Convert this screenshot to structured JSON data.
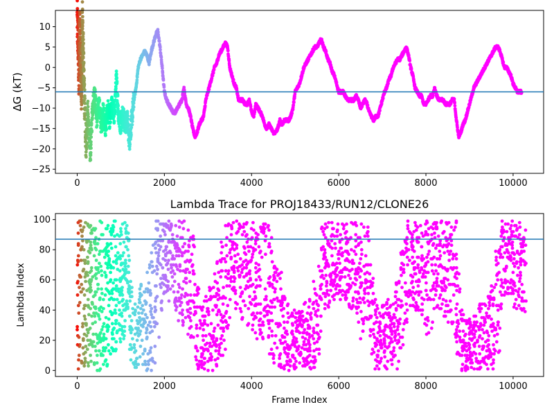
{
  "chart_data": [
    {
      "type": "scatter",
      "title": "",
      "xlabel": "",
      "ylabel": "ΔG (kT)",
      "xlim": [
        -500,
        10700
      ],
      "ylim": [
        -26,
        14
      ],
      "xticks": [
        0,
        2000,
        4000,
        6000,
        8000,
        10000
      ],
      "yticks": [
        -25,
        -20,
        -15,
        -10,
        -5,
        0,
        5,
        10
      ],
      "hline": -6,
      "hline_color": "#1f77b4",
      "colormap": "rainbow (red at early frames → violet at late frames)",
      "trace": [
        [
          0,
          12
        ],
        [
          20,
          6
        ],
        [
          40,
          -2
        ],
        [
          60,
          10
        ],
        [
          80,
          0
        ],
        [
          100,
          -8
        ],
        [
          120,
          12
        ],
        [
          140,
          3
        ],
        [
          160,
          -6
        ],
        [
          200,
          -18
        ],
        [
          250,
          -12
        ],
        [
          300,
          -22
        ],
        [
          350,
          -10
        ],
        [
          400,
          -6
        ],
        [
          450,
          -13
        ],
        [
          500,
          -9
        ],
        [
          550,
          -14
        ],
        [
          600,
          -11
        ],
        [
          650,
          -15
        ],
        [
          700,
          -10
        ],
        [
          750,
          -13
        ],
        [
          800,
          -9
        ],
        [
          850,
          -12
        ],
        [
          900,
          -3
        ],
        [
          950,
          -12
        ],
        [
          1000,
          -14
        ],
        [
          1050,
          -11
        ],
        [
          1100,
          -14
        ],
        [
          1150,
          -13
        ],
        [
          1200,
          -18
        ],
        [
          1250,
          -13
        ],
        [
          1300,
          -8
        ],
        [
          1350,
          -5
        ],
        [
          1400,
          0
        ],
        [
          1450,
          2
        ],
        [
          1500,
          3
        ],
        [
          1550,
          4
        ],
        [
          1600,
          3
        ],
        [
          1650,
          1
        ],
        [
          1700,
          4
        ],
        [
          1750,
          6
        ],
        [
          1800,
          8
        ],
        [
          1850,
          9
        ],
        [
          1900,
          5
        ],
        [
          1950,
          0
        ],
        [
          2000,
          -6
        ],
        [
          2050,
          -8
        ],
        [
          2100,
          -9
        ],
        [
          2150,
          -10
        ],
        [
          2200,
          -11
        ],
        [
          2250,
          -11
        ],
        [
          2300,
          -10
        ],
        [
          2350,
          -9
        ],
        [
          2400,
          -8
        ],
        [
          2450,
          -5
        ],
        [
          2500,
          -9
        ],
        [
          2550,
          -10
        ],
        [
          2600,
          -12
        ],
        [
          2650,
          -15
        ],
        [
          2700,
          -17
        ],
        [
          2750,
          -16
        ],
        [
          2800,
          -14
        ],
        [
          2850,
          -13
        ],
        [
          2900,
          -12
        ],
        [
          2950,
          -8
        ],
        [
          3000,
          -6
        ],
        [
          3050,
          -4
        ],
        [
          3100,
          -2
        ],
        [
          3150,
          0
        ],
        [
          3200,
          1
        ],
        [
          3250,
          3
        ],
        [
          3300,
          4
        ],
        [
          3350,
          5
        ],
        [
          3400,
          6
        ],
        [
          3450,
          5
        ],
        [
          3500,
          0
        ],
        [
          3550,
          -2
        ],
        [
          3600,
          -4
        ],
        [
          3650,
          -5
        ],
        [
          3700,
          -8
        ],
        [
          3750,
          -8
        ],
        [
          3800,
          -8
        ],
        [
          3850,
          -9
        ],
        [
          3900,
          -9
        ],
        [
          3950,
          -8
        ],
        [
          4000,
          -11
        ],
        [
          4050,
          -12
        ],
        [
          4100,
          -9
        ],
        [
          4150,
          -10
        ],
        [
          4200,
          -11
        ],
        [
          4250,
          -12
        ],
        [
          4300,
          -14
        ],
        [
          4350,
          -15
        ],
        [
          4400,
          -14
        ],
        [
          4450,
          -15
        ],
        [
          4500,
          -16
        ],
        [
          4550,
          -16
        ],
        [
          4600,
          -15
        ],
        [
          4650,
          -13
        ],
        [
          4700,
          -14
        ],
        [
          4750,
          -13
        ],
        [
          4800,
          -13
        ],
        [
          4850,
          -13
        ],
        [
          4900,
          -12
        ],
        [
          4950,
          -10
        ],
        [
          5000,
          -6
        ],
        [
          5050,
          -5
        ],
        [
          5100,
          -4
        ],
        [
          5150,
          -2
        ],
        [
          5200,
          0
        ],
        [
          5250,
          1
        ],
        [
          5300,
          2
        ],
        [
          5350,
          3
        ],
        [
          5400,
          4
        ],
        [
          5450,
          5
        ],
        [
          5500,
          5
        ],
        [
          5550,
          6
        ],
        [
          5600,
          7
        ],
        [
          5650,
          5
        ],
        [
          5700,
          4
        ],
        [
          5750,
          2
        ],
        [
          5800,
          1
        ],
        [
          5850,
          -1
        ],
        [
          5900,
          -2
        ],
        [
          5950,
          -4
        ],
        [
          6000,
          -6
        ],
        [
          6050,
          -6
        ],
        [
          6100,
          -6
        ],
        [
          6150,
          -7
        ],
        [
          6200,
          -8
        ],
        [
          6250,
          -8
        ],
        [
          6300,
          -8
        ],
        [
          6350,
          -8
        ],
        [
          6400,
          -7
        ],
        [
          6450,
          -8
        ],
        [
          6500,
          -10
        ],
        [
          6550,
          -9
        ],
        [
          6600,
          -8
        ],
        [
          6650,
          -9
        ],
        [
          6700,
          -11
        ],
        [
          6750,
          -12
        ],
        [
          6800,
          -13
        ],
        [
          6850,
          -12
        ],
        [
          6900,
          -12
        ],
        [
          6950,
          -10
        ],
        [
          7000,
          -8
        ],
        [
          7050,
          -6
        ],
        [
          7100,
          -5
        ],
        [
          7150,
          -3
        ],
        [
          7200,
          -2
        ],
        [
          7250,
          0
        ],
        [
          7300,
          1
        ],
        [
          7350,
          2
        ],
        [
          7400,
          2
        ],
        [
          7450,
          3
        ],
        [
          7500,
          4
        ],
        [
          7550,
          5
        ],
        [
          7600,
          3
        ],
        [
          7650,
          0
        ],
        [
          7700,
          -2
        ],
        [
          7750,
          -5
        ],
        [
          7800,
          -6
        ],
        [
          7850,
          -7
        ],
        [
          7900,
          -7
        ],
        [
          7950,
          -9
        ],
        [
          8000,
          -9
        ],
        [
          8050,
          -8
        ],
        [
          8100,
          -7
        ],
        [
          8150,
          -7
        ],
        [
          8200,
          -5
        ],
        [
          8250,
          -7
        ],
        [
          8300,
          -8
        ],
        [
          8350,
          -8
        ],
        [
          8400,
          -8
        ],
        [
          8450,
          -9
        ],
        [
          8500,
          -9
        ],
        [
          8550,
          -9
        ],
        [
          8600,
          -8
        ],
        [
          8650,
          -8
        ],
        [
          8700,
          -13
        ],
        [
          8750,
          -17
        ],
        [
          8800,
          -16
        ],
        [
          8850,
          -14
        ],
        [
          8900,
          -13
        ],
        [
          8950,
          -11
        ],
        [
          9000,
          -9
        ],
        [
          9050,
          -7
        ],
        [
          9100,
          -5
        ],
        [
          9150,
          -4
        ],
        [
          9200,
          -3
        ],
        [
          9250,
          -2
        ],
        [
          9300,
          -1
        ],
        [
          9350,
          0
        ],
        [
          9400,
          1
        ],
        [
          9450,
          2
        ],
        [
          9500,
          3
        ],
        [
          9550,
          4
        ],
        [
          9600,
          5
        ],
        [
          9650,
          5
        ],
        [
          9700,
          4
        ],
        [
          9750,
          2
        ],
        [
          9800,
          0
        ],
        [
          9850,
          0
        ],
        [
          9900,
          -1
        ],
        [
          9950,
          -2
        ],
        [
          10000,
          -4
        ],
        [
          10050,
          -5
        ],
        [
          10100,
          -6
        ],
        [
          10150,
          -6
        ],
        [
          10200,
          -6
        ]
      ]
    },
    {
      "type": "scatter",
      "title": "Lambda Trace for PROJ18433/RUN12/CLONE26",
      "xlabel": "Frame Index",
      "ylabel": "Lambda Index",
      "xlim": [
        -500,
        10700
      ],
      "ylim": [
        -4,
        104
      ],
      "xticks": [
        0,
        2000,
        4000,
        6000,
        8000,
        10000
      ],
      "yticks": [
        0,
        20,
        40,
        60,
        80,
        100
      ],
      "hline": 87,
      "hline_color": "#1f77b4",
      "colormap": "rainbow (red at early frames → violet at late frames)",
      "bands": [
        [
          0,
          0,
          99
        ],
        [
          100,
          0,
          99
        ],
        [
          200,
          0,
          99
        ],
        [
          300,
          0,
          99
        ],
        [
          400,
          0,
          99
        ],
        [
          500,
          0,
          99
        ],
        [
          600,
          0,
          99
        ],
        [
          700,
          10,
          99
        ],
        [
          800,
          10,
          99
        ],
        [
          900,
          15,
          99
        ],
        [
          1000,
          20,
          99
        ],
        [
          1100,
          40,
          99
        ],
        [
          1200,
          0,
          60
        ],
        [
          1300,
          0,
          45
        ],
        [
          1400,
          0,
          60
        ],
        [
          1500,
          0,
          55
        ],
        [
          1600,
          0,
          75
        ],
        [
          1700,
          0,
          90
        ],
        [
          1800,
          20,
          99
        ],
        [
          1900,
          40,
          99
        ],
        [
          2000,
          50,
          99
        ],
        [
          2100,
          45,
          99
        ],
        [
          2200,
          40,
          99
        ],
        [
          2300,
          30,
          99
        ],
        [
          2400,
          30,
          99
        ],
        [
          2500,
          20,
          99
        ],
        [
          2600,
          10,
          90
        ],
        [
          2700,
          0,
          60
        ],
        [
          2800,
          0,
          45
        ],
        [
          2900,
          0,
          50
        ],
        [
          3000,
          0,
          55
        ],
        [
          3100,
          0,
          65
        ],
        [
          3200,
          5,
          75
        ],
        [
          3300,
          10,
          85
        ],
        [
          3400,
          25,
          99
        ],
        [
          3500,
          40,
          99
        ],
        [
          3600,
          40,
          99
        ],
        [
          3700,
          30,
          99
        ],
        [
          3800,
          40,
          99
        ],
        [
          3900,
          30,
          95
        ],
        [
          4000,
          20,
          99
        ],
        [
          4100,
          20,
          99
        ],
        [
          4200,
          20,
          99
        ],
        [
          4300,
          20,
          99
        ],
        [
          4400,
          10,
          99
        ],
        [
          4500,
          0,
          70
        ],
        [
          4600,
          0,
          65
        ],
        [
          4700,
          0,
          50
        ],
        [
          4800,
          0,
          45
        ],
        [
          4900,
          0,
          40
        ],
        [
          5000,
          0,
          40
        ],
        [
          5100,
          0,
          45
        ],
        [
          5200,
          0,
          45
        ],
        [
          5300,
          0,
          50
        ],
        [
          5400,
          0,
          60
        ],
        [
          5500,
          10,
          80
        ],
        [
          5600,
          40,
          99
        ],
        [
          5700,
          40,
          99
        ],
        [
          5800,
          45,
          99
        ],
        [
          5900,
          50,
          99
        ],
        [
          6000,
          45,
          99
        ],
        [
          6100,
          45,
          99
        ],
        [
          6200,
          40,
          99
        ],
        [
          6300,
          40,
          99
        ],
        [
          6400,
          30,
          99
        ],
        [
          6500,
          20,
          99
        ],
        [
          6600,
          30,
          99
        ],
        [
          6700,
          10,
          70
        ],
        [
          6800,
          0,
          50
        ],
        [
          6900,
          0,
          40
        ],
        [
          7000,
          0,
          45
        ],
        [
          7100,
          0,
          50
        ],
        [
          7200,
          0,
          45
        ],
        [
          7300,
          0,
          60
        ],
        [
          7400,
          10,
          80
        ],
        [
          7500,
          30,
          99
        ],
        [
          7600,
          40,
          99
        ],
        [
          7700,
          40,
          99
        ],
        [
          7800,
          40,
          99
        ],
        [
          7900,
          30,
          99
        ],
        [
          8000,
          20,
          99
        ],
        [
          8100,
          20,
          99
        ],
        [
          8200,
          30,
          99
        ],
        [
          8300,
          40,
          99
        ],
        [
          8400,
          30,
          99
        ],
        [
          8500,
          30,
          99
        ],
        [
          8600,
          20,
          99
        ],
        [
          8700,
          10,
          70
        ],
        [
          8800,
          0,
          40
        ],
        [
          8900,
          0,
          35
        ],
        [
          9000,
          0,
          35
        ],
        [
          9100,
          0,
          40
        ],
        [
          9200,
          0,
          45
        ],
        [
          9300,
          0,
          45
        ],
        [
          9400,
          0,
          55
        ],
        [
          9500,
          0,
          60
        ],
        [
          9600,
          10,
          80
        ],
        [
          9700,
          40,
          99
        ],
        [
          9800,
          50,
          99
        ],
        [
          9900,
          50,
          99
        ],
        [
          10000,
          40,
          99
        ],
        [
          10100,
          40,
          99
        ],
        [
          10200,
          35,
          95
        ]
      ]
    }
  ]
}
